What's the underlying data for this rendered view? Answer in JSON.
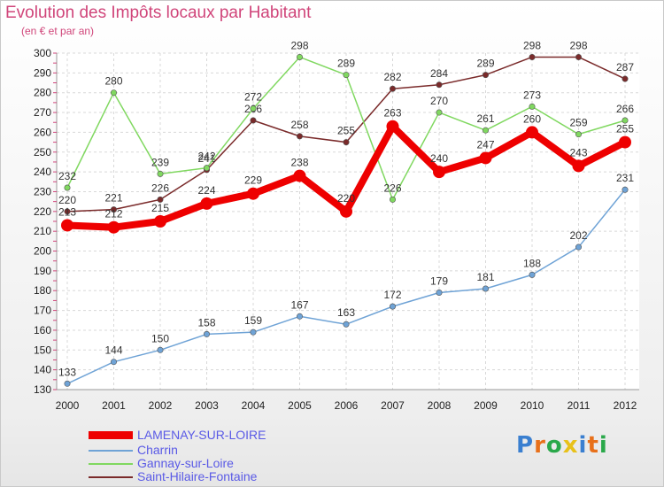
{
  "header": {
    "title": "Evolution des Impôts locaux par Habitant",
    "subtitle": "(en € et par an)"
  },
  "brand": {
    "letters": [
      "P",
      "r",
      "o",
      "x",
      "i",
      "t",
      "i"
    ],
    "colors": [
      "#3a7fd0",
      "#e8701a",
      "#2aa84a",
      "#e8c11a",
      "#3a7fd0",
      "#e8701a",
      "#2aa84a"
    ]
  },
  "chart_data": {
    "type": "line",
    "x": [
      "2000",
      "2001",
      "2002",
      "2003",
      "2004",
      "2005",
      "2006",
      "2007",
      "2008",
      "2009",
      "2010",
      "2011",
      "2012"
    ],
    "ylim": [
      130,
      300
    ],
    "yticks": [
      130,
      140,
      150,
      160,
      170,
      180,
      190,
      200,
      210,
      220,
      230,
      240,
      250,
      260,
      270,
      280,
      290,
      300
    ],
    "grid": true,
    "legend_position": "bottom-left",
    "series": [
      {
        "name": "Saint-Hilaire-Fontaine",
        "color": "#7a2a2a",
        "values": [
          220,
          221,
          226,
          241,
          266,
          258,
          255,
          282,
          284,
          289,
          298,
          298,
          287
        ]
      },
      {
        "name": "Gannay-sur-Loire",
        "color": "#80d860",
        "values": [
          232,
          280,
          239,
          242,
          272,
          298,
          289,
          226,
          270,
          261,
          273,
          259,
          266
        ]
      },
      {
        "name": "Charrin",
        "color": "#6fa3d6",
        "values": [
          133,
          144,
          150,
          158,
          159,
          167,
          163,
          172,
          179,
          181,
          188,
          202,
          231
        ]
      },
      {
        "name": "LAMENAY-SUR-LOIRE",
        "color": "#ee0000",
        "values": [
          213,
          212,
          215,
          224,
          229,
          238,
          220,
          263,
          240,
          247,
          260,
          243,
          255
        ]
      }
    ],
    "legend": [
      {
        "label": "LAMENAY-SUR-LOIRE",
        "color": "#ee0000"
      },
      {
        "label": "Charrin",
        "color": "#6fa3d6"
      },
      {
        "label": "Gannay-sur-Loire",
        "color": "#80d860"
      },
      {
        "label": "Saint-Hilaire-Fontaine",
        "color": "#7a2a2a"
      }
    ]
  }
}
